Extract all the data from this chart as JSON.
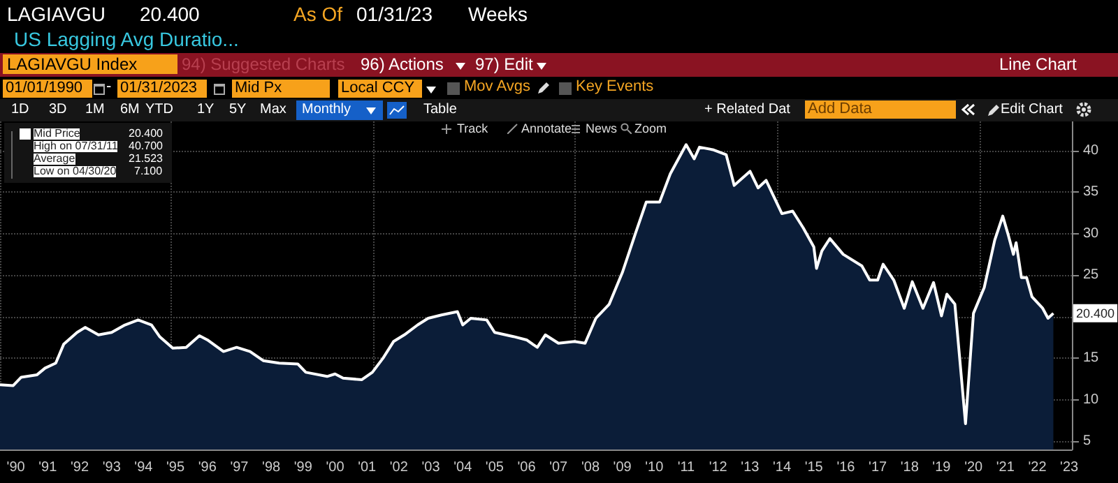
{
  "chart_data": {
    "type": "area",
    "title": "US Lagging Avg Duratio...",
    "x": [
      "1990-01",
      "1990-06",
      "1990-09",
      "1991-03",
      "1991-06",
      "1991-10",
      "1992-01",
      "1992-06",
      "1992-09",
      "1993-02",
      "1993-07",
      "1993-12",
      "1994-05",
      "1994-10",
      "1995-01",
      "1995-06",
      "1995-11",
      "1996-04",
      "1996-07",
      "1997-01",
      "1997-06",
      "1997-11",
      "1998-04",
      "1998-10",
      "1999-05",
      "1999-08",
      "2000-04",
      "2000-07",
      "2000-10",
      "2001-05",
      "2001-09",
      "2002-01",
      "2002-05",
      "2002-09",
      "2003-02",
      "2003-06",
      "2003-11",
      "2004-05",
      "2004-07",
      "2004-10",
      "2005-04",
      "2005-07",
      "2006-02",
      "2006-07",
      "2006-11",
      "2007-02",
      "2007-07",
      "2008-01",
      "2008-05",
      "2008-09",
      "2009-02",
      "2009-07",
      "2009-12",
      "2010-04",
      "2010-09",
      "2011-01",
      "2011-07",
      "2011-10",
      "2011-12",
      "2012-05",
      "2012-10",
      "2013-01",
      "2013-07",
      "2013-10",
      "2014-01",
      "2014-07",
      "2014-11",
      "2015-03",
      "2015-07",
      "2015-08",
      "2015-10",
      "2016-01",
      "2016-06",
      "2017-01",
      "2017-04",
      "2017-07",
      "2017-09",
      "2018-01",
      "2018-05",
      "2018-08",
      "2018-12",
      "2019-04",
      "2019-07",
      "2019-09",
      "2019-12",
      "2020-04",
      "2020-07",
      "2020-11",
      "2021-03",
      "2021-06",
      "2021-08",
      "2021-10",
      "2021-11",
      "2022-01",
      "2022-03",
      "2022-05",
      "2022-09",
      "2022-11",
      "2023-01"
    ],
    "series": [
      {
        "name": "Mid Price",
        "color": "#ffffff",
        "values": [
          11.8,
          11.7,
          12.7,
          13.0,
          13.8,
          14.4,
          16.7,
          18.1,
          18.7,
          17.8,
          18.1,
          19.0,
          19.6,
          19.0,
          17.6,
          16.2,
          16.3,
          17.7,
          17.2,
          15.8,
          16.3,
          15.8,
          14.7,
          14.4,
          14.3,
          13.3,
          12.8,
          13.1,
          12.6,
          12.4,
          13.3,
          15.0,
          17.0,
          17.8,
          19.0,
          19.8,
          20.2,
          20.6,
          19.0,
          19.8,
          19.6,
          18.1,
          17.6,
          17.2,
          16.3,
          17.8,
          16.8,
          17.0,
          16.8,
          19.8,
          21.5,
          25.3,
          30.1,
          33.8,
          33.8,
          37.2,
          40.7,
          39.0,
          40.4,
          40.1,
          39.5,
          35.8,
          37.5,
          35.5,
          36.4,
          32.4,
          32.7,
          30.7,
          28.4,
          25.8,
          27.9,
          29.4,
          27.5,
          26.1,
          24.4,
          24.4,
          26.3,
          24.4,
          21.0,
          24.2,
          21.0,
          24.1,
          20.1,
          22.7,
          21.5,
          7.1,
          20.4,
          23.5,
          29.2,
          32.1,
          29.9,
          27.5,
          28.9,
          24.7,
          24.7,
          22.4,
          21.0,
          19.8,
          20.4
        ]
      }
    ],
    "xlim": [
      "1990-01",
      "2023-08"
    ],
    "xticks": [
      {
        "value": "1990-07",
        "label": "'90"
      },
      {
        "value": "1991-07",
        "label": "'91"
      },
      {
        "value": "1992-07",
        "label": "'92"
      },
      {
        "value": "1993-07",
        "label": "'93"
      },
      {
        "value": "1994-07",
        "label": "'94"
      },
      {
        "value": "1995-07",
        "label": "'95"
      },
      {
        "value": "1996-07",
        "label": "'96"
      },
      {
        "value": "1997-07",
        "label": "'97"
      },
      {
        "value": "1998-07",
        "label": "'98"
      },
      {
        "value": "1999-07",
        "label": "'99"
      },
      {
        "value": "2000-07",
        "label": "'00"
      },
      {
        "value": "2001-07",
        "label": "'01"
      },
      {
        "value": "2002-07",
        "label": "'02"
      },
      {
        "value": "2003-07",
        "label": "'03"
      },
      {
        "value": "2004-07",
        "label": "'04"
      },
      {
        "value": "2005-07",
        "label": "'05"
      },
      {
        "value": "2006-07",
        "label": "'06"
      },
      {
        "value": "2007-07",
        "label": "'07"
      },
      {
        "value": "2008-07",
        "label": "'08"
      },
      {
        "value": "2009-07",
        "label": "'09"
      },
      {
        "value": "2010-07",
        "label": "'10"
      },
      {
        "value": "2011-07",
        "label": "'11"
      },
      {
        "value": "2012-07",
        "label": "'12"
      },
      {
        "value": "2013-07",
        "label": "'13"
      },
      {
        "value": "2014-07",
        "label": "'14"
      },
      {
        "value": "2015-07",
        "label": "'15"
      },
      {
        "value": "2016-07",
        "label": "'16"
      },
      {
        "value": "2017-07",
        "label": "'17"
      },
      {
        "value": "2018-07",
        "label": "'18"
      },
      {
        "value": "2019-07",
        "label": "'19"
      },
      {
        "value": "2020-07",
        "label": "'20"
      },
      {
        "value": "2021-07",
        "label": "'21"
      },
      {
        "value": "2022-07",
        "label": "'22"
      },
      {
        "value": "2023-07",
        "label": "'23"
      }
    ],
    "ylim": [
      4,
      43.5
    ],
    "yticks": [
      5,
      10,
      15,
      {
        "value": 20,
        "label": null
      },
      25,
      30,
      35,
      40
    ],
    "grid": true,
    "legend": "top left",
    "annotations": [
      "LAGIAVGU",
      "20.400",
      "As Of",
      "01/31/23",
      "Weeks",
      "LAGIAVGU Index",
      "94) Suggested Charts",
      "96) Actions",
      "97) Edit",
      "Line Chart",
      "01/01/1990",
      "-",
      "01/31/2023",
      "Mid Px",
      "Local CCY",
      "Mov Avgs",
      "Key Events",
      "1D",
      "3D",
      "1M",
      "6M",
      "YTD",
      "1Y",
      "5Y",
      "Max",
      "Monthly",
      "Table",
      "+ Related Dat",
      "Add Data",
      "Edit Chart",
      "Track",
      "Annotate",
      "News",
      "Zoom",
      "20.400",
      "High on 07/31/11",
      "40.700",
      "Average",
      "21.523",
      "Low on 04/30/20",
      "7.100",
      {
        "text": "20.400",
        "x": "2023-01",
        "y": 20.4
      }
    ]
  }
}
